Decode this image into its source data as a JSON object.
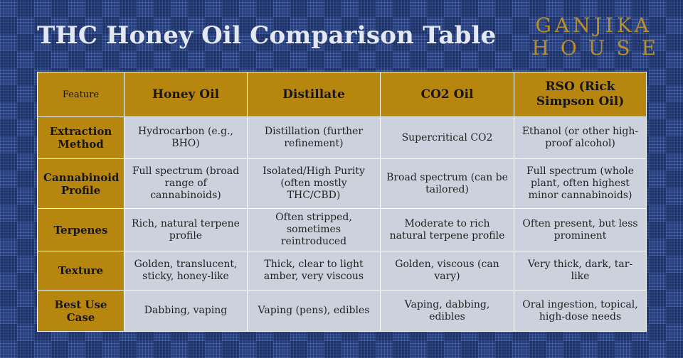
{
  "title": "THC Honey Oil Comparison Table",
  "logo": {
    "line1": "GANJIKA",
    "line2": "HOUSE"
  },
  "colors": {
    "background": "#253c7a",
    "gold": "#b7860f",
    "cell": "#ccd2dd",
    "title": "#e4e8f2"
  },
  "table": {
    "headers": [
      "Feature",
      "Honey Oil",
      "Distillate",
      "CO2 Oil",
      "RSO (Rick Simpson Oil)"
    ],
    "rows": [
      {
        "feature": "Extraction Method",
        "cells": [
          "Hydrocarbon (e.g., BHO)",
          "Distillation (further refinement)",
          "Supercritical CO2",
          "Ethanol (or other high-proof alcohol)"
        ]
      },
      {
        "feature": "Cannabinoid Profile",
        "cells": [
          "Full spectrum (broad range of cannabinoids)",
          "Isolated/High Purity (often mostly THC/CBD)",
          "Broad spectrum (can be tailored)",
          "Full spectrum (whole plant, often highest minor cannabinoids)"
        ]
      },
      {
        "feature": "Terpenes",
        "cells": [
          "Rich, natural terpene profile",
          "Often stripped, sometimes reintroduced",
          "Moderate to rich natural terpene profile",
          "Often present, but less prominent"
        ]
      },
      {
        "feature": "Texture",
        "cells": [
          "Golden, translucent, sticky, honey-like",
          "Thick, clear to light amber, very viscous",
          "Golden, viscous (can vary)",
          "Very thick, dark, tar-like"
        ]
      },
      {
        "feature": "Best Use Case",
        "cells": [
          "Dabbing, vaping",
          "Vaping (pens), edibles",
          "Vaping, dabbing, edibles",
          "Oral ingestion, topical, high-dose needs"
        ]
      }
    ]
  }
}
